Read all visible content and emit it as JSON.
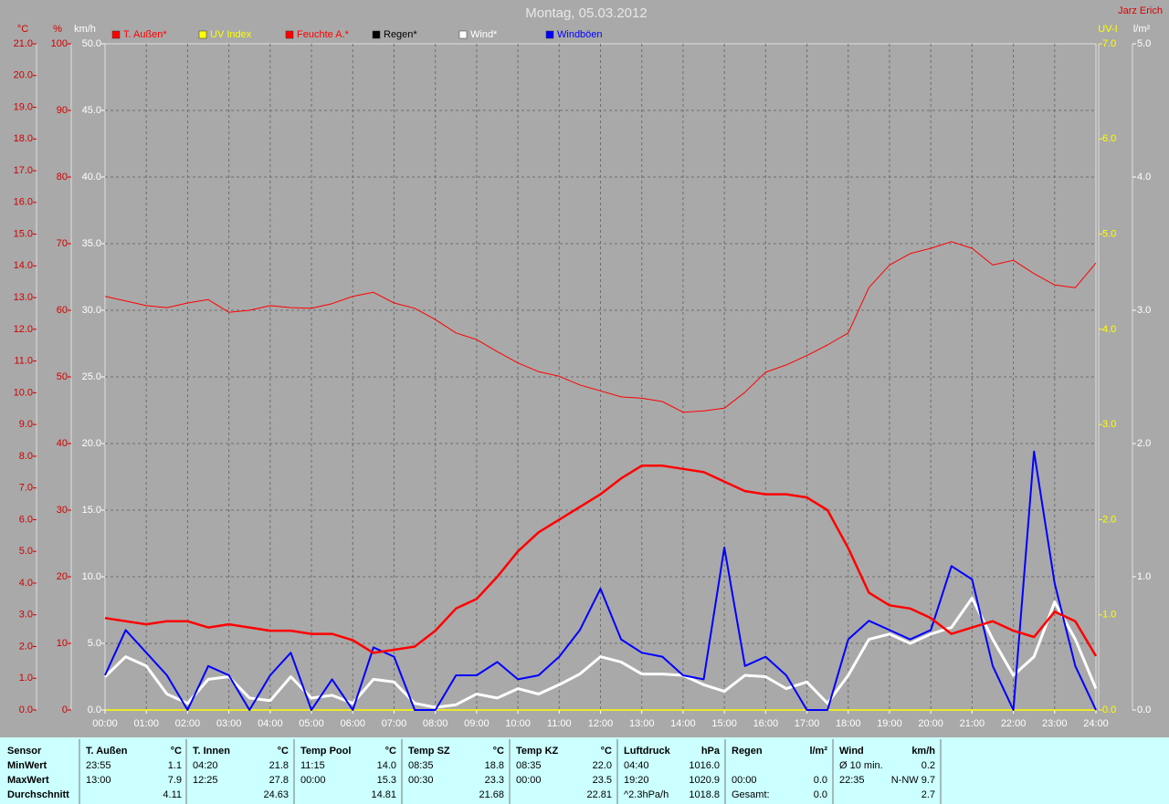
{
  "chart_data": {
    "type": "line",
    "title": "Montag, 05.03.2012",
    "author": "Jarz Erich",
    "grid": true,
    "x": [
      0,
      0.5,
      1,
      1.5,
      2,
      2.5,
      3,
      3.5,
      4,
      4.5,
      5,
      5.5,
      6,
      6.5,
      7,
      7.5,
      8,
      8.5,
      9,
      9.5,
      10,
      10.5,
      11,
      11.5,
      12,
      12.5,
      13,
      13.5,
      14,
      14.5,
      15,
      15.5,
      16,
      16.5,
      17,
      17.5,
      18,
      18.5,
      19,
      19.5,
      20,
      20.5,
      21,
      21.5,
      22,
      22.5,
      23,
      23.5,
      24
    ],
    "xlim": [
      0,
      24
    ],
    "xticks": [
      {
        "value": 0,
        "label": "00:00"
      },
      {
        "value": 1,
        "label": "01:00"
      },
      {
        "value": 2,
        "label": "02:00"
      },
      {
        "value": 3,
        "label": "03:00"
      },
      {
        "value": 4,
        "label": "04:00"
      },
      {
        "value": 5,
        "label": "05:00"
      },
      {
        "value": 6,
        "label": "06:00"
      },
      {
        "value": 7,
        "label": "07:00"
      },
      {
        "value": 8,
        "label": "08:00"
      },
      {
        "value": 9,
        "label": "09:00"
      },
      {
        "value": 10,
        "label": "10:00"
      },
      {
        "value": 11,
        "label": "11:00"
      },
      {
        "value": 12,
        "label": "12:00"
      },
      {
        "value": 13,
        "label": "13:00"
      },
      {
        "value": 14,
        "label": "14:00"
      },
      {
        "value": 15,
        "label": "15:00"
      },
      {
        "value": 16,
        "label": "16:00"
      },
      {
        "value": 17,
        "label": "17:00"
      },
      {
        "value": 18,
        "label": "18:00"
      },
      {
        "value": 19,
        "label": "19:00"
      },
      {
        "value": 20,
        "label": "20:00"
      },
      {
        "value": 21,
        "label": "21:00"
      },
      {
        "value": 22,
        "label": "22:00"
      },
      {
        "value": 23,
        "label": "23:00"
      },
      {
        "value": 24,
        "label": "24:00"
      }
    ],
    "y_axes": [
      {
        "label": "°C",
        "color": "#d00000",
        "lim": [
          0,
          21
        ],
        "ticks": [
          {
            "value": 0,
            "label": "0.0"
          },
          {
            "value": 1,
            "label": "1.0"
          },
          {
            "value": 2,
            "label": "2.0"
          },
          {
            "value": 3,
            "label": "3.0"
          },
          {
            "value": 4,
            "label": "4.0"
          },
          {
            "value": 5,
            "label": "5.0"
          },
          {
            "value": 6,
            "label": "6.0"
          },
          {
            "value": 7,
            "label": "7.0"
          },
          {
            "value": 8,
            "label": "8.0"
          },
          {
            "value": 9,
            "label": "9.0"
          },
          {
            "value": 10,
            "label": "10.0"
          },
          {
            "value": 11,
            "label": "11.0"
          },
          {
            "value": 12,
            "label": "12.0"
          },
          {
            "value": 13,
            "label": "13.0"
          },
          {
            "value": 14,
            "label": "14.0"
          },
          {
            "value": 15,
            "label": "15.0"
          },
          {
            "value": 16,
            "label": "16.0"
          },
          {
            "value": 17,
            "label": "17.0"
          },
          {
            "value": 18,
            "label": "18.0"
          },
          {
            "value": 19,
            "label": "19.0"
          },
          {
            "value": 20,
            "label": "20.0"
          },
          {
            "value": 21,
            "label": "21.0"
          }
        ]
      },
      {
        "label": "%",
        "color": "#d00000",
        "lim": [
          0,
          100
        ],
        "ticks": [
          0,
          10,
          20,
          30,
          40,
          50,
          60,
          70,
          80,
          90,
          100
        ]
      },
      {
        "label": "km/h",
        "color": "#ffffff",
        "lim": [
          0,
          50
        ],
        "ticks": [
          {
            "value": 0,
            "label": "0.0"
          },
          {
            "value": 5,
            "label": "5.0"
          },
          {
            "value": 10,
            "label": "10.0"
          },
          {
            "value": 15,
            "label": "15.0"
          },
          {
            "value": 20,
            "label": "20.0"
          },
          {
            "value": 25,
            "label": "25.0"
          },
          {
            "value": 30,
            "label": "30.0"
          },
          {
            "value": 35,
            "label": "35.0"
          },
          {
            "value": 40,
            "label": "40.0"
          },
          {
            "value": 45,
            "label": "45.0"
          },
          {
            "value": 50,
            "label": "50.0"
          }
        ]
      },
      {
        "label": "UV-I",
        "color": "#ffff00",
        "lim": [
          0,
          7
        ],
        "ticks": [
          {
            "value": 0,
            "label": "0.0"
          },
          {
            "value": 1,
            "label": "1.0"
          },
          {
            "value": 2,
            "label": "2.0"
          },
          {
            "value": 3,
            "label": "3.0"
          },
          {
            "value": 4,
            "label": "4.0"
          },
          {
            "value": 5,
            "label": "5.0"
          },
          {
            "value": 6,
            "label": "6.0"
          },
          {
            "value": 7,
            "label": "7.0"
          }
        ]
      },
      {
        "label": "l/m²",
        "color": "#ffffff",
        "lim": [
          0,
          5
        ],
        "ticks": [
          {
            "value": 0,
            "label": "0.0"
          },
          {
            "value": 1,
            "label": "1.0"
          },
          {
            "value": 2,
            "label": "2.0"
          },
          {
            "value": 3,
            "label": "3.0"
          },
          {
            "value": 4,
            "label": "4.0"
          },
          {
            "value": 5,
            "label": "5.0"
          }
        ]
      }
    ],
    "grid_axis": 2,
    "series": [
      {
        "name": "T. Außen*",
        "color": "#ff0000",
        "axis": 0,
        "width": 2.5,
        "values": [
          2.9,
          2.8,
          2.7,
          2.8,
          2.8,
          2.6,
          2.7,
          2.6,
          2.5,
          2.5,
          2.4,
          2.4,
          2.2,
          1.8,
          1.9,
          2.0,
          2.5,
          3.2,
          3.5,
          4.2,
          5.0,
          5.6,
          6.0,
          6.4,
          6.8,
          7.3,
          7.7,
          7.7,
          7.6,
          7.5,
          7.2,
          6.9,
          6.8,
          6.8,
          6.7,
          6.3,
          5.1,
          3.7,
          3.3,
          3.2,
          2.9,
          2.4,
          2.6,
          2.8,
          2.5,
          2.3,
          3.1,
          2.8,
          1.7
        ]
      },
      {
        "name": "UV Index",
        "color": "#ffff00",
        "axis": 3,
        "width": 1.5,
        "values": [
          0,
          0,
          0,
          0,
          0,
          0,
          0,
          0,
          0,
          0,
          0,
          0,
          0,
          0,
          0,
          0,
          0,
          0,
          0,
          0,
          0,
          0,
          0,
          0,
          0,
          0,
          0,
          0,
          0,
          0,
          0,
          0,
          0,
          0,
          0,
          0,
          0,
          0,
          0,
          0,
          0,
          0,
          0,
          0,
          0,
          0,
          0,
          0,
          0
        ]
      },
      {
        "name": "Feuchte A.*",
        "color": "#ff0000",
        "axis": 1,
        "width": 1,
        "values": [
          62.1,
          61.4,
          60.7,
          60.4,
          61.1,
          61.6,
          59.7,
          60.0,
          60.7,
          60.4,
          60.3,
          61.0,
          62.1,
          62.7,
          61.1,
          60.3,
          58.6,
          56.6,
          55.6,
          53.8,
          52.1,
          50.8,
          50.1,
          48.8,
          47.9,
          47.0,
          46.8,
          46.3,
          44.7,
          44.9,
          45.3,
          47.7,
          50.7,
          51.8,
          53.2,
          54.8,
          56.6,
          63.4,
          66.8,
          68.5,
          69.3,
          70.3,
          69.3,
          66.8,
          67.5,
          65.5,
          63.8,
          63.4,
          67.1
        ]
      },
      {
        "name": "Regen*",
        "color": "#000000",
        "axis": 4,
        "width": 1,
        "values": [
          0,
          0,
          0,
          0,
          0,
          0,
          0,
          0,
          0,
          0,
          0,
          0,
          0,
          0,
          0,
          0,
          0,
          0,
          0,
          0,
          0,
          0,
          0,
          0,
          0,
          0,
          0,
          0,
          0,
          0,
          0,
          0,
          0,
          0,
          0,
          0,
          0,
          0,
          0,
          0,
          0,
          0,
          0,
          0,
          0,
          0,
          0,
          0,
          0
        ]
      },
      {
        "name": "Wind*",
        "color": "#ffffff",
        "axis": 2,
        "width": 3,
        "values": [
          2.5,
          4.0,
          3.3,
          1.2,
          0.5,
          2.3,
          2.5,
          0.9,
          0.7,
          2.5,
          0.9,
          1.1,
          0.5,
          2.3,
          2.1,
          0.5,
          0.2,
          0.4,
          1.2,
          0.9,
          1.6,
          1.2,
          1.9,
          2.7,
          4.0,
          3.6,
          2.7,
          2.7,
          2.6,
          1.9,
          1.4,
          2.6,
          2.5,
          1.6,
          2.1,
          0.5,
          2.6,
          5.3,
          5.7,
          5.0,
          5.7,
          6.2,
          8.4,
          5.3,
          2.6,
          4.0,
          8.1,
          5.3,
          1.6
        ]
      },
      {
        "name": "Windböen",
        "color": "#0000ff",
        "axis": 2,
        "width": 2,
        "values": [
          2.6,
          6.0,
          4.3,
          2.6,
          0,
          3.3,
          2.6,
          0,
          2.6,
          4.3,
          0,
          2.3,
          0,
          4.7,
          4.0,
          0,
          0,
          2.6,
          2.6,
          3.6,
          2.3,
          2.6,
          4.0,
          6.0,
          9.1,
          5.3,
          4.3,
          4.0,
          2.6,
          2.3,
          12.2,
          3.3,
          4.0,
          2.6,
          0,
          0,
          5.3,
          6.7,
          6.0,
          5.3,
          6.0,
          10.8,
          9.8,
          3.3,
          0,
          19.4,
          9.5,
          3.3,
          0
        ]
      }
    ]
  },
  "table": {
    "row_labels": [
      "Sensor",
      "MinWert",
      "MaxWert",
      "Durchschnitt"
    ],
    "columns": [
      {
        "header": "T. Außen",
        "unit": "°C",
        "rows": [
          [
            "23:55",
            "1.1"
          ],
          [
            "13:00",
            "7.9"
          ],
          [
            "4.11"
          ]
        ]
      },
      {
        "header": "T. Innen",
        "unit": "°C",
        "rows": [
          [
            "04:20",
            "21.8"
          ],
          [
            "12:25",
            "27.8"
          ],
          [
            "24.63"
          ]
        ]
      },
      {
        "header": "Temp Pool",
        "unit": "°C",
        "rows": [
          [
            "11:15",
            "14.0"
          ],
          [
            "00:00",
            "15.3"
          ],
          [
            "14.81"
          ]
        ]
      },
      {
        "header": "Temp SZ",
        "unit": "°C",
        "rows": [
          [
            "08:35",
            "18.8"
          ],
          [
            "00:30",
            "23.3"
          ],
          [
            "21.68"
          ]
        ]
      },
      {
        "header": "Temp KZ",
        "unit": "°C",
        "rows": [
          [
            "08:35",
            "22.0"
          ],
          [
            "00:00",
            "23.5"
          ],
          [
            "22.81"
          ]
        ]
      },
      {
        "header": "Luftdruck",
        "unit": "hPa",
        "rows": [
          [
            "04:40",
            "1016.0"
          ],
          [
            "19:20",
            "1020.9"
          ],
          [
            "^2.3hPa/h",
            "1018.8"
          ]
        ]
      },
      {
        "header": "Regen",
        "unit": "l/m²",
        "rows": [
          [],
          [
            "00:00",
            "0.0"
          ],
          [
            "Gesamt:",
            "0.0"
          ]
        ]
      },
      {
        "header": "Wind",
        "unit": "km/h",
        "rows": [
          [
            "Ø 10 min.",
            "0.2"
          ],
          [
            "22:35",
            "N-NW 9.7"
          ],
          [
            "2.7"
          ]
        ]
      }
    ]
  }
}
